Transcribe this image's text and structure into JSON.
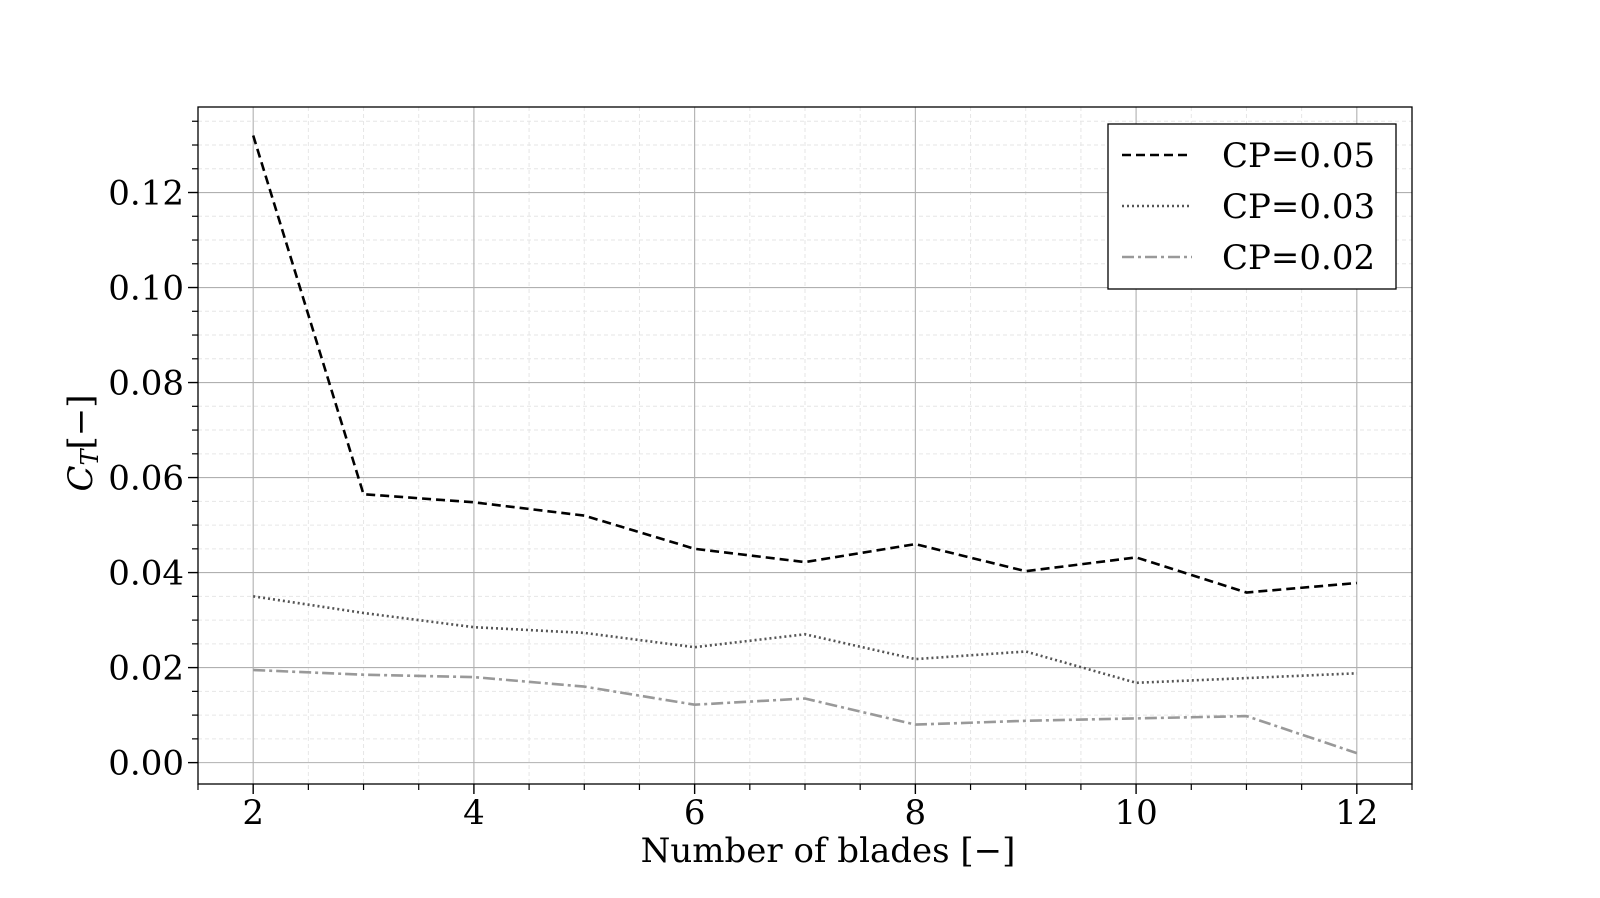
{
  "chart_data": {
    "type": "line",
    "title": "",
    "xlabel": "Number of blades  [−]",
    "ylabel_main": "C",
    "ylabel_sub": "T",
    "ylabel_unit": "[−]",
    "xlim": [
      1.5,
      12.5
    ],
    "ylim": [
      -0.0045,
      0.138
    ],
    "xticks": [
      2,
      4,
      6,
      8,
      10,
      12
    ],
    "xtick_labels": [
      "2",
      "4",
      "6",
      "8",
      "10",
      "12"
    ],
    "yticks": [
      0.0,
      0.02,
      0.04,
      0.06,
      0.08,
      0.1,
      0.12
    ],
    "ytick_labels": [
      "0.00",
      "0.02",
      "0.04",
      "0.06",
      "0.08",
      "0.10",
      "0.12"
    ],
    "grid": true,
    "minor_grid": true,
    "legend_position": "top-right",
    "x": [
      2,
      3,
      4,
      5,
      6,
      7,
      8,
      9,
      10,
      11,
      12
    ],
    "series": [
      {
        "name": "CP=0.05",
        "style": "dashed",
        "color": "#000000",
        "values": [
          0.132,
          0.0565,
          0.0548,
          0.052,
          0.045,
          0.0422,
          0.046,
          0.0403,
          0.0432,
          0.0358,
          0.0378
        ]
      },
      {
        "name": "CP=0.03",
        "style": "dotted",
        "color": "#555555",
        "values": [
          0.035,
          0.0315,
          0.0285,
          0.0273,
          0.0243,
          0.027,
          0.0218,
          0.0234,
          0.0168,
          0.0178,
          0.0188
        ]
      },
      {
        "name": "CP=0.02",
        "style": "dashdot",
        "color": "#999999",
        "values": [
          0.0195,
          0.0185,
          0.018,
          0.016,
          0.0122,
          0.0135,
          0.008,
          0.0088,
          0.0093,
          0.0098,
          0.002
        ]
      }
    ]
  }
}
